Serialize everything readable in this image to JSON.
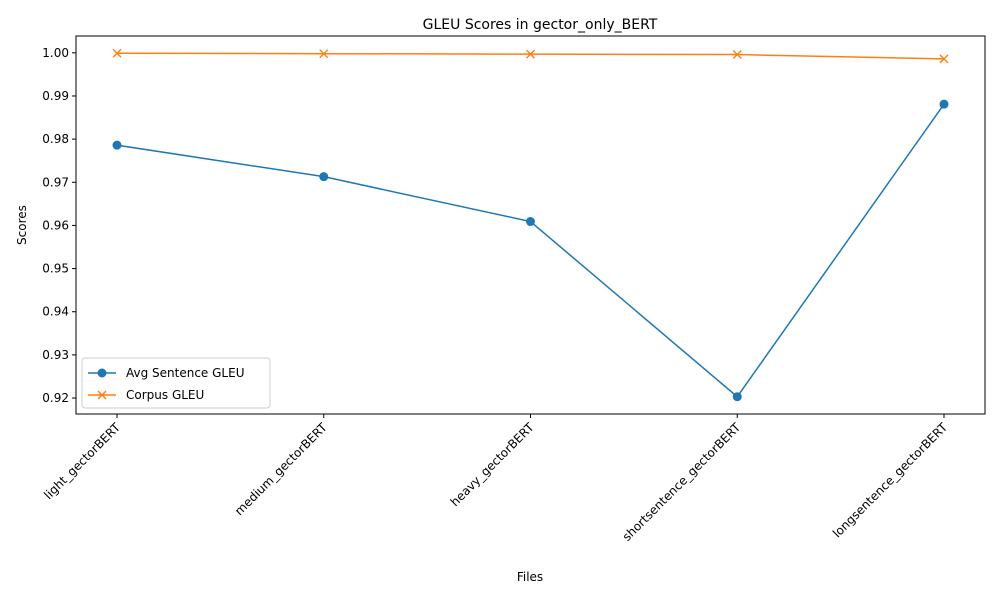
{
  "chart_data": {
    "type": "line",
    "title": "GLEU Scores in gector_only_BERT",
    "xlabel": "Files",
    "ylabel": "Scores",
    "categories": [
      "light_gectorBERT",
      "medium_gectorBERT",
      "heavy_gectorBERT",
      "shortsentence_gectorBERT",
      "longsentence_gectorBERT"
    ],
    "series": [
      {
        "name": "Avg Sentence GLEU",
        "values": [
          0.9786,
          0.9713,
          0.9609,
          0.9203,
          0.9881
        ],
        "color": "#1f77b4",
        "marker": "circle"
      },
      {
        "name": "Corpus GLEU",
        "values": [
          0.9999,
          0.9998,
          0.9997,
          0.9996,
          0.9986
        ],
        "color": "#ff7f0e",
        "marker": "x"
      }
    ],
    "yticks": [
      "0.92",
      "0.93",
      "0.94",
      "0.95",
      "0.96",
      "0.97",
      "0.98",
      "0.99",
      "1.00"
    ],
    "ylim": [
      0.9163,
      1.0039
    ],
    "grid": false,
    "legend_position": "lower-left"
  }
}
